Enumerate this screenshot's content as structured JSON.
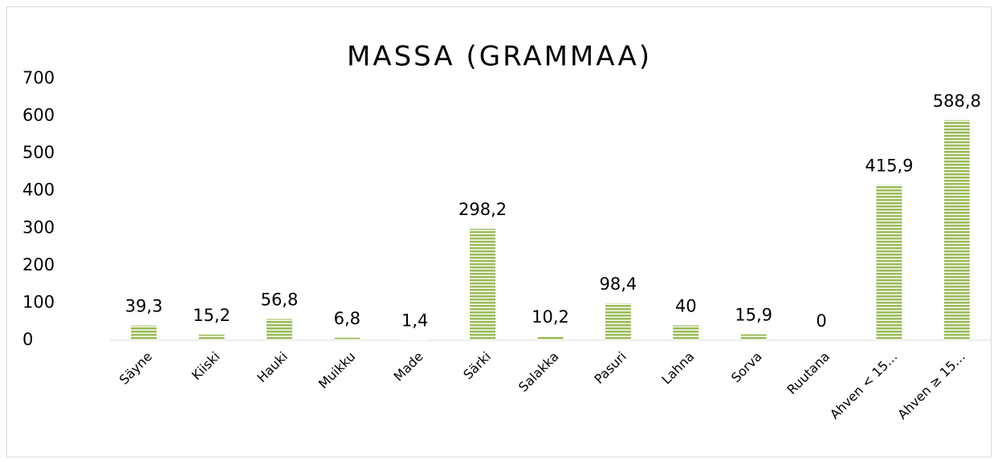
{
  "chart_data": {
    "type": "bar",
    "title": "MASSA (GRAMMAA)",
    "categories": [
      "Säyne",
      "Kiiski",
      "Hauki",
      "Muikku",
      "Made",
      "Särki",
      "Salakka",
      "Pasuri",
      "Lahna",
      "Sorva",
      "Ruutana",
      "Ahven < 15…",
      "Ahven ≥ 15…"
    ],
    "values": [
      39.3,
      15.2,
      56.8,
      6.8,
      1.4,
      298.2,
      10.2,
      98.4,
      40,
      15.9,
      0,
      415.9,
      588.8
    ],
    "value_labels": [
      "39,3",
      "15,2",
      "56,8",
      "6,8",
      "1,4",
      "298,2",
      "10,2",
      "98,4",
      "40",
      "15,9",
      "0",
      "415,9",
      "588,8"
    ],
    "color": "#9bbb59",
    "ylim": [
      0,
      700
    ],
    "yticks": [
      0,
      100,
      200,
      300,
      400,
      500,
      600,
      700
    ],
    "grid": false
  }
}
